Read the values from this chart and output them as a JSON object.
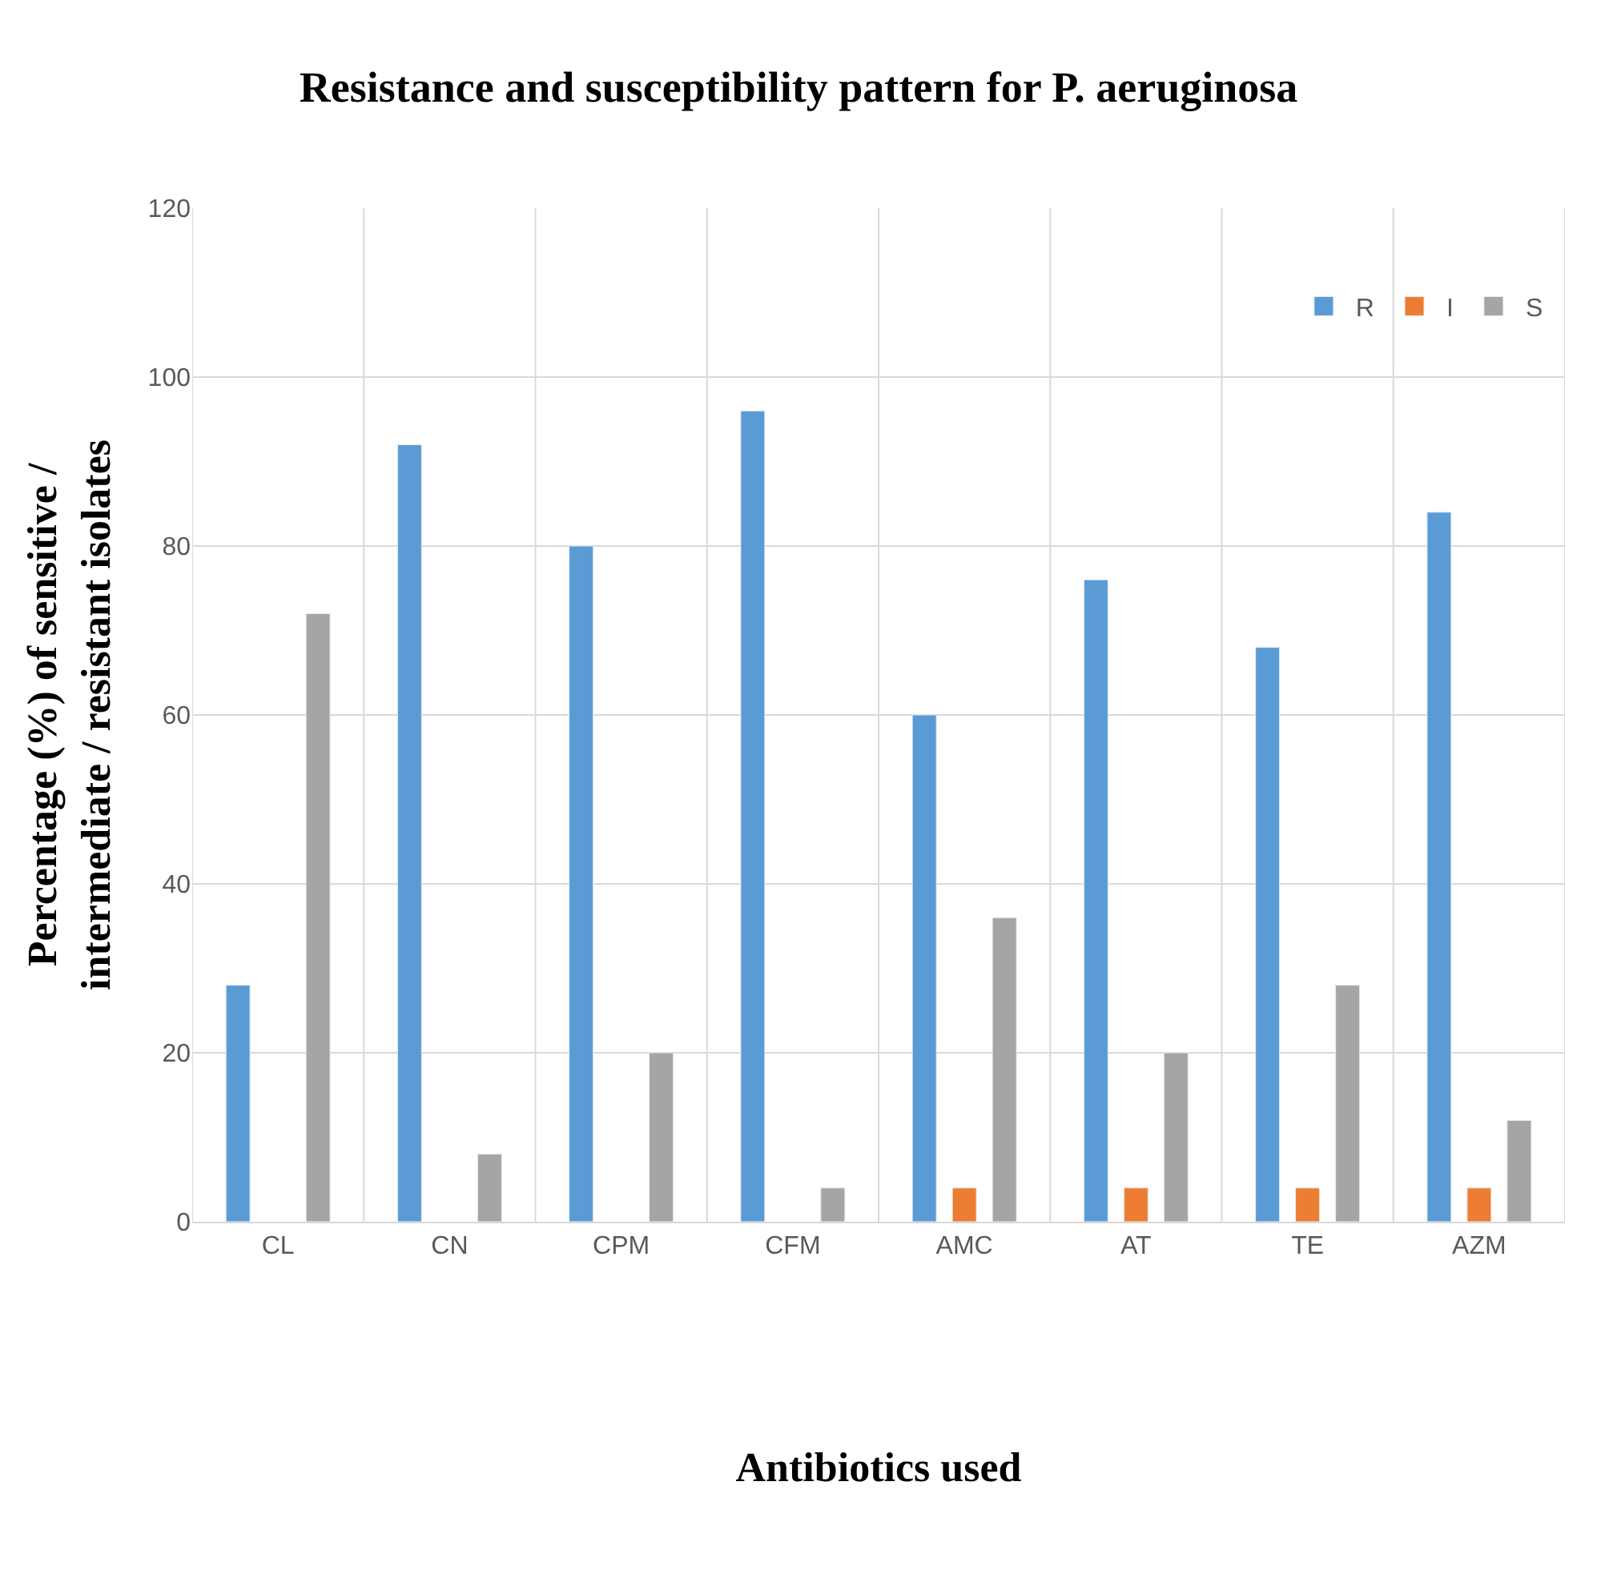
{
  "chart_data": {
    "type": "bar",
    "title": "Resistance and susceptibility pattern for P. aeruginosa",
    "xlabel": "Antibiotics used",
    "ylabel": "Percentage (%) of sensitive / intermediate / resistant isolates",
    "categories": [
      "CL",
      "CN",
      "CPM",
      "CFM",
      "AMC",
      "AT",
      "TE",
      "AZM"
    ],
    "series": [
      {
        "name": "R",
        "color": "#5b9bd5",
        "values": [
          28,
          92,
          80,
          96,
          60,
          76,
          68,
          84
        ]
      },
      {
        "name": "I",
        "color": "#ed7d31",
        "values": [
          null,
          null,
          null,
          null,
          4,
          4,
          4,
          4
        ]
      },
      {
        "name": "S",
        "color": "#a5a5a5",
        "values": [
          72,
          8,
          20,
          4,
          36,
          20,
          28,
          12
        ]
      }
    ],
    "ylim": [
      0,
      120
    ],
    "yticks": [
      0,
      20,
      40,
      60,
      80,
      100,
      120
    ],
    "grid": true,
    "legend": "top right"
  }
}
